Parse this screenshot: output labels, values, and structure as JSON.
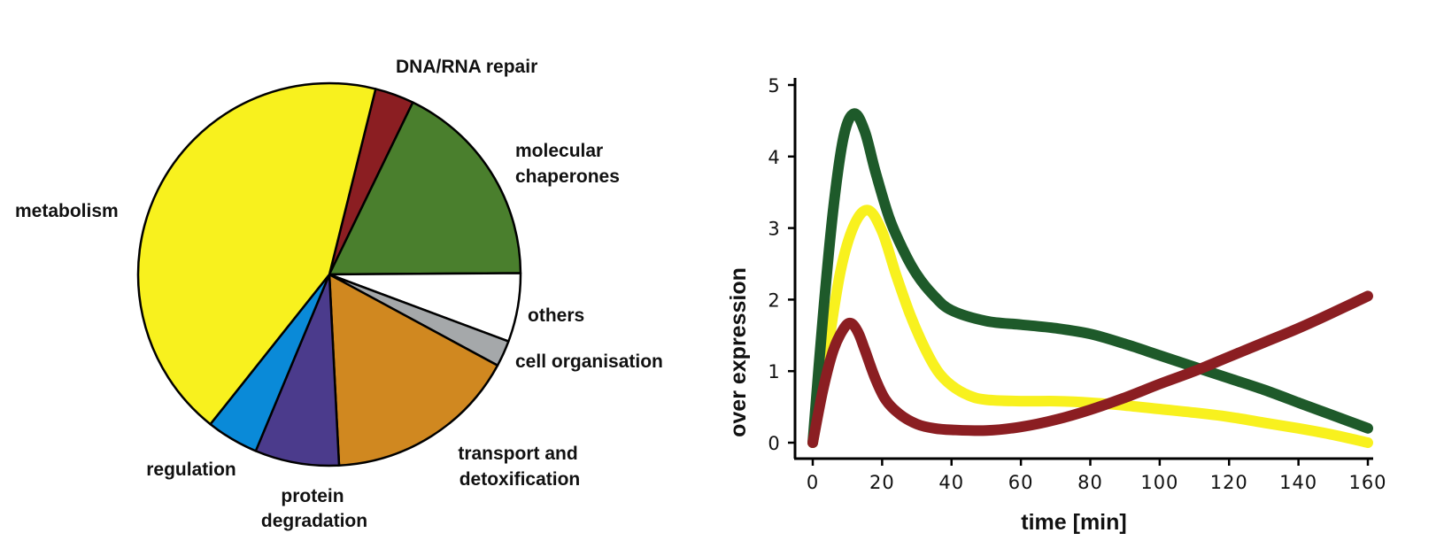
{
  "chart_data": [
    {
      "type": "pie",
      "slices": [
        {
          "label": "DNA/RNA repair",
          "value": 3.3,
          "color": "#8B1E22"
        },
        {
          "label": "molecular chaperones",
          "value": 17.7,
          "color": "#4A7F2D"
        },
        {
          "label": "others",
          "value": 5.8,
          "color": "#FFFFFF"
        },
        {
          "label": "cell organisation",
          "value": 2.2,
          "color": "#A5A8AA"
        },
        {
          "label": "transport and detoxification",
          "value": 16.3,
          "color": "#D08820"
        },
        {
          "label": "protein degradation",
          "value": 7.1,
          "color": "#4B3B8C"
        },
        {
          "label": "regulation",
          "value": 4.4,
          "color": "#0A8AD8"
        },
        {
          "label": "metabolism",
          "value": 43.2,
          "color": "#F8F11E"
        }
      ]
    },
    {
      "type": "line",
      "xlabel": "time [min]",
      "ylabel": "over expression",
      "xlim": [
        0,
        160
      ],
      "ylim": [
        0,
        5
      ],
      "xticks": [
        0,
        20,
        40,
        60,
        80,
        100,
        120,
        140,
        160
      ],
      "yticks": [
        0,
        1,
        2,
        3,
        4,
        5
      ],
      "series": [
        {
          "color": "#1E5A2A",
          "x": [
            0,
            3,
            6,
            9,
            12,
            15,
            18,
            22,
            26,
            30,
            35,
            40,
            50,
            60,
            70,
            80,
            90,
            100,
            110,
            120,
            130,
            140,
            150,
            160
          ],
          "y": [
            0,
            1.8,
            3.3,
            4.3,
            4.6,
            4.35,
            3.8,
            3.15,
            2.7,
            2.35,
            2.05,
            1.85,
            1.7,
            1.65,
            1.6,
            1.52,
            1.38,
            1.22,
            1.06,
            0.9,
            0.74,
            0.56,
            0.38,
            0.2
          ]
        },
        {
          "color": "#F8F11E",
          "x": [
            0,
            4,
            8,
            12,
            16,
            20,
            24,
            28,
            32,
            36,
            40,
            45,
            50,
            60,
            70,
            80,
            90,
            100,
            110,
            120,
            130,
            140,
            150,
            160
          ],
          "y": [
            0,
            1.2,
            2.4,
            3.05,
            3.25,
            2.95,
            2.35,
            1.8,
            1.35,
            1.0,
            0.8,
            0.66,
            0.6,
            0.58,
            0.58,
            0.56,
            0.52,
            0.47,
            0.42,
            0.36,
            0.28,
            0.2,
            0.11,
            0.0
          ]
        },
        {
          "color": "#8B1E22",
          "x": [
            0,
            3,
            6,
            9,
            11,
            13,
            15,
            18,
            21,
            25,
            30,
            35,
            40,
            50,
            60,
            70,
            80,
            90,
            100,
            110,
            120,
            130,
            140,
            150,
            160
          ],
          "y": [
            0,
            0.75,
            1.3,
            1.6,
            1.67,
            1.55,
            1.3,
            0.9,
            0.6,
            0.4,
            0.26,
            0.2,
            0.18,
            0.17,
            0.22,
            0.32,
            0.46,
            0.63,
            0.82,
            1.0,
            1.2,
            1.4,
            1.6,
            1.82,
            2.05
          ]
        }
      ]
    }
  ]
}
